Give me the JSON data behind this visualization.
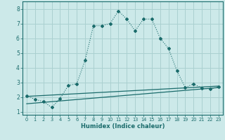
{
  "xlabel": "Humidex (Indice chaleur)",
  "background_color": "#cce9e9",
  "grid_color": "#aad0d0",
  "line_color": "#1a6b6b",
  "xlim": [
    -0.5,
    23.5
  ],
  "ylim": [
    0.8,
    8.5
  ],
  "yticks": [
    1,
    2,
    3,
    4,
    5,
    6,
    7,
    8
  ],
  "xticks": [
    0,
    1,
    2,
    3,
    4,
    5,
    6,
    7,
    8,
    9,
    10,
    11,
    12,
    13,
    14,
    15,
    16,
    17,
    18,
    19,
    20,
    21,
    22,
    23
  ],
  "series1_x": [
    0,
    1,
    2,
    3,
    4,
    5,
    6,
    7,
    8,
    9,
    10,
    11,
    12,
    13,
    14,
    15,
    16,
    17,
    18,
    19,
    20,
    21,
    22,
    23
  ],
  "series1_y": [
    2.1,
    1.85,
    1.7,
    1.3,
    1.9,
    2.8,
    2.9,
    4.5,
    6.85,
    6.85,
    7.0,
    7.85,
    7.3,
    6.5,
    7.3,
    7.3,
    6.0,
    5.3,
    3.8,
    2.65,
    2.9,
    2.6,
    2.55,
    2.7
  ],
  "series2_x": [
    0,
    23
  ],
  "series2_y": [
    2.05,
    2.75
  ],
  "series3_x": [
    0,
    23
  ],
  "series3_y": [
    1.55,
    2.65
  ]
}
